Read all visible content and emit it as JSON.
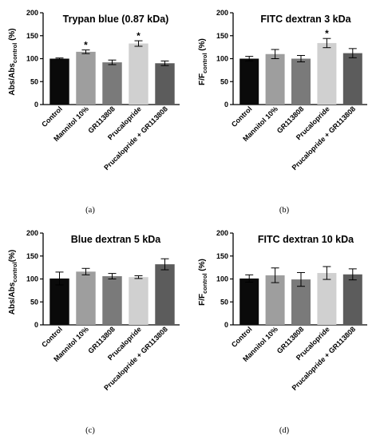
{
  "chart_data": [
    {
      "type": "bar",
      "panel_label": "(a)",
      "title": "Trypan blue (0.87 kDa)",
      "ylabel": {
        "main": "Abs/Abs",
        "sub": "control",
        "tail": " (%)"
      },
      "ylim": [
        0,
        200
      ],
      "yticks": [
        "0",
        "50",
        "100",
        "150",
        "200"
      ],
      "categories": [
        "Control",
        "Mannitol 10%",
        "GR113808",
        "Prucalopride",
        "Prucalopride + GR113808"
      ],
      "values": [
        100,
        115,
        92,
        133,
        90
      ],
      "errors": [
        1.5,
        4,
        5,
        6,
        5
      ],
      "significance": [
        "",
        "*",
        "",
        "*",
        ""
      ],
      "colors": [
        "#0a0a0a",
        "#9e9e9e",
        "#7a7a7a",
        "#d0d0d0",
        "#5c5c5c"
      ]
    },
    {
      "type": "bar",
      "panel_label": "(b)",
      "title": "FITC dextran 3 kDa",
      "ylabel": {
        "main": "F/F",
        "sub": "control",
        "tail": " (%)"
      },
      "ylim": [
        0,
        200
      ],
      "yticks": [
        "0",
        "50",
        "100",
        "150",
        "200"
      ],
      "categories": [
        "Control",
        "Mannitol 10%",
        "GR113808",
        "Prucalopride",
        "Prucalopride + GR113808"
      ],
      "values": [
        100,
        110,
        100,
        134,
        112
      ],
      "errors": [
        5,
        10,
        7,
        10,
        10
      ],
      "significance": [
        "",
        "",
        "",
        "*",
        ""
      ],
      "colors": [
        "#0a0a0a",
        "#9e9e9e",
        "#7a7a7a",
        "#d0d0d0",
        "#5c5c5c"
      ]
    },
    {
      "type": "bar",
      "panel_label": "(c)",
      "title": "Blue dextran 5 kDa",
      "ylabel": {
        "main": "Abs/Abs",
        "sub": "control",
        "tail": "(%)"
      },
      "ylim": [
        0,
        200
      ],
      "yticks": [
        "0",
        "50",
        "100",
        "150",
        "200"
      ],
      "categories": [
        "Control",
        "Mannitol 10%",
        "GR113808",
        "Prucalopride",
        "Prucalopride + GR113808"
      ],
      "values": [
        101,
        116,
        106,
        104,
        132
      ],
      "errors": [
        14,
        7,
        6,
        3,
        12
      ],
      "significance": [
        "",
        "",
        "",
        "",
        ""
      ],
      "colors": [
        "#0a0a0a",
        "#9e9e9e",
        "#7a7a7a",
        "#d0d0d0",
        "#5c5c5c"
      ]
    },
    {
      "type": "bar",
      "panel_label": "(d)",
      "title": "FITC dextran 10 kDa",
      "ylabel": {
        "main": "F/F",
        "sub": "control",
        "tail": " (%)"
      },
      "ylim": [
        0,
        200
      ],
      "yticks": [
        "0",
        "50",
        "100",
        "150",
        "200"
      ],
      "categories": [
        "Control",
        "Mannitol 10%",
        "GR113808",
        "Prucalopride",
        "Prucalopride + GR113808"
      ],
      "values": [
        101,
        108,
        99,
        113,
        110
      ],
      "errors": [
        8,
        16,
        15,
        14,
        12
      ],
      "significance": [
        "",
        "",
        "",
        "",
        ""
      ],
      "colors": [
        "#0a0a0a",
        "#9e9e9e",
        "#7a7a7a",
        "#d0d0d0",
        "#5c5c5c"
      ]
    }
  ]
}
